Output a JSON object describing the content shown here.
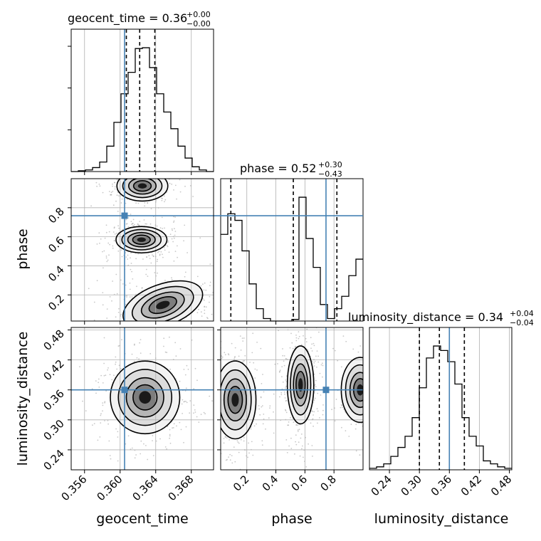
{
  "chart_data": {
    "type": "corner",
    "parameters": [
      {
        "name": "geocent_time",
        "label": "geocent_time",
        "range": [
          0.3545,
          0.3705
        ],
        "ticks": [
          0.356,
          0.36,
          0.364,
          0.368
        ],
        "tick_labels": [
          "0.356",
          "0.360",
          "0.364",
          "0.368"
        ],
        "truth": 0.3605
      },
      {
        "name": "phase",
        "label": "phase",
        "range": [
          0.02,
          1.0
        ],
        "ticks": [
          0.2,
          0.4,
          0.6,
          0.8
        ],
        "tick_labels": [
          "0.2",
          "0.4",
          "0.6",
          "0.8"
        ],
        "truth": 0.745
      },
      {
        "name": "luminosity_distance",
        "label": "luminosity_distance",
        "range": [
          0.2,
          0.485
        ],
        "ticks": [
          0.24,
          0.3,
          0.36,
          0.42,
          0.48
        ],
        "tick_labels": [
          "0.24",
          "0.30",
          "0.36",
          "0.42",
          "0.48"
        ],
        "truth": 0.36
      }
    ],
    "titles": [
      {
        "text": "geocent_time = 0.36",
        "sup": "+0.00",
        "sub": "−0.00"
      },
      {
        "text": "phase = 0.52",
        "sup": "+0.30",
        "sub": "−0.43"
      },
      {
        "text": "luminosity_distance = 0.34",
        "sup": "+0.04",
        "sub": "−0.04"
      }
    ],
    "quantiles": [
      [
        0.3607,
        0.3622,
        0.3639
      ],
      [
        0.09,
        0.52,
        0.82
      ],
      [
        0.3,
        0.34,
        0.39
      ]
    ],
    "histograms": [
      {
        "bin_edges": [
          0.3545,
          0.3553,
          0.3561,
          0.3569,
          0.3577,
          0.3585,
          0.3593,
          0.3601,
          0.3609,
          0.3617,
          0.3625,
          0.3633,
          0.3641,
          0.3649,
          0.3657,
          0.3665,
          0.3673,
          0.3681,
          0.3689,
          0.3697,
          0.3705
        ],
        "counts": [
          0,
          1,
          2,
          5,
          12,
          32,
          62,
          98,
          125,
          155,
          156,
          131,
          98,
          75,
          54,
          32,
          17,
          6,
          2,
          0
        ]
      },
      {
        "bin_edges": [
          0.02,
          0.069,
          0.118,
          0.167,
          0.216,
          0.265,
          0.314,
          0.363,
          0.412,
          0.461,
          0.51,
          0.559,
          0.608,
          0.657,
          0.706,
          0.755,
          0.804,
          0.853,
          0.902,
          0.951,
          1.0
        ],
        "counts": [
          105,
          130,
          122,
          85,
          45,
          15,
          3,
          0,
          0,
          0,
          2,
          150,
          100,
          65,
          20,
          3,
          15,
          30,
          55,
          75
        ]
      },
      {
        "bin_edges": [
          0.2,
          0.21425,
          0.2285,
          0.24275,
          0.257,
          0.27125,
          0.2855,
          0.29975,
          0.314,
          0.32825,
          0.3425,
          0.35675,
          0.371,
          0.38525,
          0.3995,
          0.41375,
          0.428,
          0.44225,
          0.4565,
          0.47075,
          0.485
        ],
        "counts": [
          2,
          4,
          8,
          18,
          30,
          45,
          70,
          110,
          150,
          166,
          160,
          145,
          115,
          70,
          45,
          32,
          12,
          8,
          4,
          2
        ]
      }
    ],
    "blobs": [
      {
        "x_param": 0,
        "y_param": 1,
        "peaks": [
          {
            "x": 0.3624,
            "y": 0.58,
            "sx": 0.0011,
            "sy": 0.035,
            "w": 1.0
          },
          {
            "x": 0.3625,
            "y": 0.95,
            "sx": 0.0011,
            "sy": 0.04,
            "w": 0.7
          },
          {
            "x": 0.3648,
            "y": 0.13,
            "sx": 0.0018,
            "sy": 0.055,
            "w": 0.9,
            "tilt": 20
          }
        ]
      },
      {
        "x_param": 0,
        "y_param": 2,
        "peaks": [
          {
            "x": 0.3628,
            "y": 0.345,
            "sx": 0.0015,
            "sy": 0.028,
            "w": 1.0
          }
        ]
      },
      {
        "x_param": 1,
        "y_param": 2,
        "peaks": [
          {
            "x": 0.12,
            "y": 0.34,
            "sx": 0.055,
            "sy": 0.03,
            "w": 1.0
          },
          {
            "x": 0.57,
            "y": 0.37,
            "sx": 0.035,
            "sy": 0.03,
            "w": 1.0
          },
          {
            "x": 0.98,
            "y": 0.36,
            "sx": 0.05,
            "sy": 0.025,
            "w": 0.55
          }
        ]
      }
    ],
    "truth_color": "#4682b4",
    "hist_color": "#000000",
    "grid": true
  }
}
